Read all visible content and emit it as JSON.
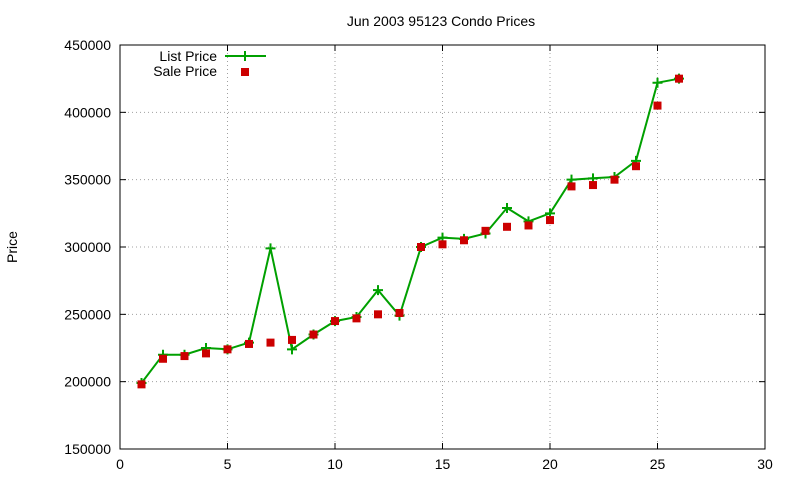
{
  "chart_data": {
    "type": "line",
    "title": "Jun 2003 95123 Condo Prices",
    "xlabel": "",
    "ylabel": "Price",
    "xlim": [
      0,
      30
    ],
    "ylim": [
      150000,
      450000
    ],
    "x_ticks": [
      0,
      5,
      10,
      15,
      20,
      25,
      30
    ],
    "y_ticks": [
      150000,
      200000,
      250000,
      300000,
      350000,
      400000,
      450000
    ],
    "grid": true,
    "legend_position": "top-left",
    "series": [
      {
        "name": "List Price",
        "style": "line-plus",
        "color": "#00a000",
        "x": [
          1,
          2,
          3,
          4,
          5,
          6,
          7,
          8,
          9,
          10,
          11,
          12,
          13,
          14,
          15,
          16,
          17,
          18,
          19,
          20,
          21,
          22,
          23,
          24,
          25,
          26
        ],
        "y": [
          199000,
          220000,
          220000,
          225000,
          224000,
          229000,
          299000,
          224000,
          235000,
          245000,
          248000,
          268000,
          249000,
          300000,
          307000,
          306000,
          310000,
          329000,
          319000,
          325000,
          350000,
          351000,
          352000,
          364000,
          422000,
          425000
        ]
      },
      {
        "name": "Sale Price",
        "style": "square",
        "color": "#cc0000",
        "x": [
          1,
          2,
          3,
          4,
          5,
          6,
          7,
          8,
          9,
          10,
          11,
          12,
          13,
          14,
          15,
          16,
          17,
          18,
          19,
          20,
          21,
          22,
          23,
          24,
          25,
          26
        ],
        "y": [
          198000,
          217000,
          219000,
          221000,
          224000,
          228000,
          229000,
          231000,
          235000,
          245000,
          247000,
          250000,
          251000,
          300000,
          302000,
          305000,
          312000,
          315000,
          316000,
          320000,
          345000,
          346000,
          350000,
          360000,
          405000,
          425000
        ]
      }
    ]
  }
}
